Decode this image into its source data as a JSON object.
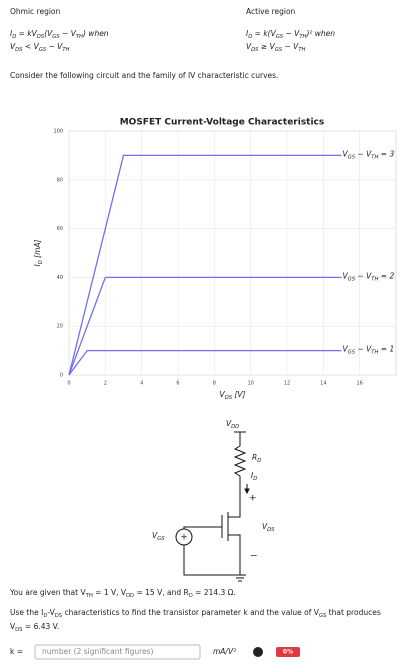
{
  "header": {
    "ohmic_title": "Ohmic region",
    "active_title": "Active region",
    "ohmic_eq": [
      "I",
      "D",
      " = kV",
      "DS",
      "(V",
      "GS",
      " − V",
      "TH",
      ") when"
    ],
    "ohmic_cond": [
      "V",
      "DS",
      " < V",
      "GS",
      " − V",
      "TH"
    ],
    "active_eq": [
      "I",
      "D",
      " = k(V",
      "GS",
      " − V",
      "TH",
      ")² when"
    ],
    "active_cond": [
      "V",
      "DS",
      " ≥ V",
      "GS",
      " − V",
      "TH"
    ]
  },
  "intro": "Consider the following circuit and the family of IV characteristic curves.",
  "chart_data": {
    "type": "line",
    "title": "MOSFET Current-Voltage Characteristics",
    "x_label": [
      "V",
      "DS",
      " [V]"
    ],
    "y_label": [
      "I",
      "D",
      " [mA]"
    ],
    "xlim": [
      0,
      18
    ],
    "ylim": [
      0,
      100
    ],
    "xticks": [
      0,
      2,
      4,
      6,
      8,
      10,
      12,
      14,
      16
    ],
    "yticks": [
      0,
      20,
      40,
      60,
      80,
      100
    ],
    "grid": true,
    "series": [
      {
        "name": [
          "V",
          "GS",
          " − V",
          "TH",
          " = 3"
        ],
        "color": "#7070ee",
        "x": [
          0,
          3,
          15
        ],
        "values": [
          0,
          90,
          90
        ]
      },
      {
        "name": [
          "V",
          "GS",
          " − V",
          "TH",
          " = 2"
        ],
        "color": "#7070ee",
        "x": [
          0,
          2,
          15
        ],
        "values": [
          0,
          40,
          40
        ]
      },
      {
        "name": [
          "V",
          "GS",
          " − V",
          "TH",
          " = 1"
        ],
        "color": "#7070ee",
        "x": [
          0,
          1,
          15
        ],
        "values": [
          0,
          10,
          10
        ]
      }
    ]
  },
  "circuit": {
    "vdd": [
      "V",
      "DD"
    ],
    "rd": [
      "R",
      "D"
    ],
    "id": [
      "I",
      "D"
    ],
    "plus": "+",
    "vds": [
      "V",
      "DS"
    ],
    "minus": "−",
    "vgs": [
      "V",
      "GS"
    ],
    "source_sign": "+"
  },
  "question": {
    "given": [
      "You are given that V",
      "TH",
      " = 1 V, V",
      "DD",
      " = 15 V, and R",
      "D",
      " = 214.3 Ω."
    ],
    "task_1": [
      "Use the I",
      "D",
      "-V",
      "DS",
      " characteristics to find the transistor parameter k and the value of V",
      "GS",
      " that produces"
    ],
    "task_2": [
      "V",
      "DS",
      " = 6.43 V."
    ]
  },
  "answer": {
    "label": "k =",
    "placeholder": "number (2 significant figures)",
    "unit": "mA/V²",
    "badge": "0%"
  }
}
